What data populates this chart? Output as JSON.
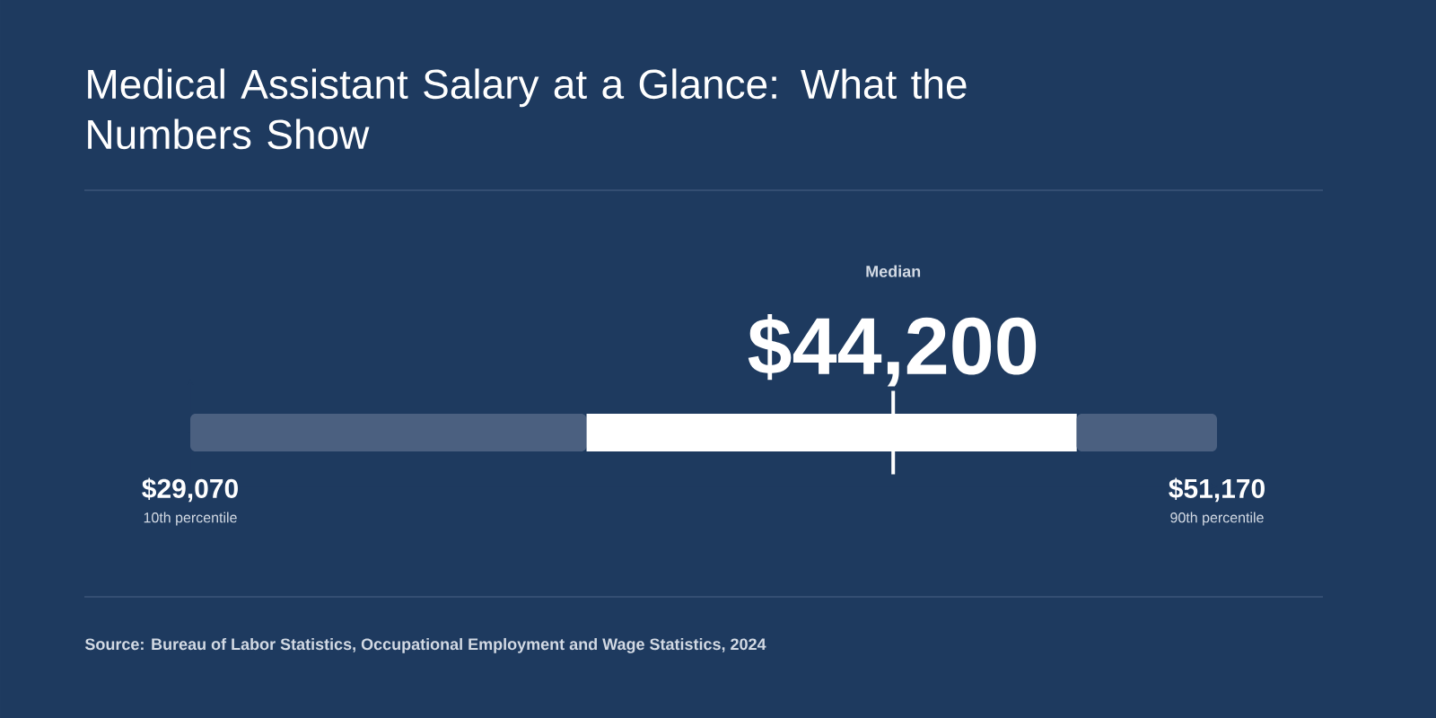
{
  "chart_data": {
    "type": "bar",
    "title": "Medical Assistant Salary at a Glance: What the Numbers Show",
    "orientation": "horizontal",
    "categories": [
      null
    ],
    "series": [
      {
        "color": "#4b6080",
        "base": [
          29070
        ],
        "values": [
          8530
        ]
      },
      {
        "color": "#ffffff",
        "base": [
          37600
        ],
        "values": [
          10550
        ]
      },
      {
        "color": "#4b6080",
        "base": [
          48150
        ],
        "values": [
          3020
        ]
      }
    ],
    "xlim": [
      29070,
      51170
    ],
    "xticks": [
      {
        "value": 29070,
        "label": "$29,070"
      },
      {
        "value": 51170,
        "label": "$51,170"
      }
    ],
    "ref_lines": [
      {
        "axis": "x",
        "value": 44200,
        "label": "$44,200",
        "color": "#ffffff"
      }
    ],
    "annotations": [
      "Median",
      "10th percentile",
      "90th percentile",
      "Source: Bureau of Labor Statistics, Occupational Employment and Wage Statistics, 2024"
    ]
  }
}
